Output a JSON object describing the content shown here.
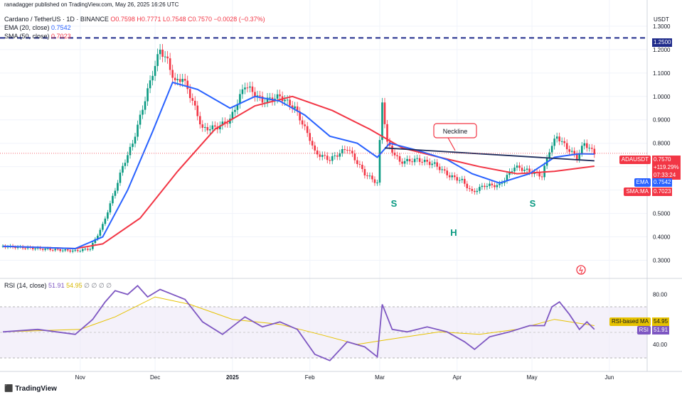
{
  "header": {
    "publisher": "ranadagger published on TradingView.com, May 26, 2025 16:26 UTC",
    "symbol": "Cardano / TetherUS · 1D · BINANCE",
    "ohlc": "O0.7598 H0.7771 L0.7548 C0.7570 −0.0028 (−0.37%)",
    "ema_label": "EMA (20, close)",
    "ema_value": "0.7542",
    "sma_label": "SMA (50, close)",
    "sma_value": "0.7023",
    "rsi_label": "RSI (14, close)",
    "rsi_value": "51.91",
    "rsi_ma_value": "54.95",
    "rsi_nan": "∅ ∅ ∅ ∅"
  },
  "axis": {
    "currency": "USDT",
    "price_ticks": [
      "1.3000",
      "1.2000",
      "1.1000",
      "1.0000",
      "0.9000",
      "0.8000",
      "0.7000",
      "0.6000",
      "0.5000",
      "0.4000",
      "0.3000"
    ],
    "rsi_ticks": [
      "80.00",
      "40.00"
    ],
    "time_ticks": [
      "Nov",
      "Dec",
      "2025",
      "Feb",
      "Mar",
      "Apr",
      "May",
      "Jun"
    ]
  },
  "price_labels": {
    "resistance": "1.2500",
    "symbol_tag": "ADAUSDT",
    "last_price": "0.7570",
    "change": "+119.29%",
    "countdown": "07:33:24",
    "ema_tag": "EMA",
    "ema_val": "0.7542",
    "sma_tag": "SMA:MA",
    "sma_val": "0.7023",
    "rsima_tag": "RSI-based MA",
    "rsima_val": "54.95",
    "rsi_tag": "RSI",
    "rsi_val": "51.91"
  },
  "annotations": {
    "neckline": "Neckline",
    "left_shoulder": "S",
    "head": "H",
    "right_shoulder": "S"
  },
  "branding": "TradingView",
  "colors": {
    "up": "#089981",
    "down": "#f23645",
    "ema": "#2962ff",
    "sma": "#f23645",
    "rsi": "#7e57c2",
    "rsi_ma": "#e6c200",
    "resistance": "#1e2a8a",
    "neckline": "#1f2d5c"
  },
  "chart_data": {
    "type": "candlestick",
    "title": "Cardano / TetherUS · 1D · BINANCE",
    "ylim": [
      0.25,
      1.33
    ],
    "x_range": [
      "2024-10-01",
      "2025-06-15"
    ],
    "resistance_level": 1.25,
    "neckline": {
      "x": [
        "2025-03-03",
        "2025-05-26"
      ],
      "y": [
        0.78,
        0.725
      ]
    },
    "close_series": {
      "x": [
        "2024-10-01",
        "2024-10-15",
        "2024-10-30",
        "2024-11-05",
        "2024-11-10",
        "2024-11-14",
        "2024-11-18",
        "2024-11-22",
        "2024-11-26",
        "2024-11-30",
        "2024-12-03",
        "2024-12-06",
        "2024-12-09",
        "2024-12-12",
        "2024-12-16",
        "2024-12-20",
        "2024-12-26",
        "2024-12-31",
        "2025-01-06",
        "2025-01-13",
        "2025-01-20",
        "2025-01-26",
        "2025-02-01",
        "2025-02-03",
        "2025-02-09",
        "2025-02-16",
        "2025-02-23",
        "2025-02-28",
        "2025-03-02",
        "2025-03-04",
        "2025-03-09",
        "2025-03-16",
        "2025-03-23",
        "2025-03-29",
        "2025-04-03",
        "2025-04-07",
        "2025-04-12",
        "2025-04-18",
        "2025-04-24",
        "2025-04-30",
        "2025-05-05",
        "2025-05-08",
        "2025-05-11",
        "2025-05-15",
        "2025-05-19",
        "2025-05-22",
        "2025-05-26"
      ],
      "y": [
        0.36,
        0.35,
        0.34,
        0.35,
        0.45,
        0.57,
        0.7,
        0.8,
        0.95,
        1.1,
        1.2,
        1.15,
        1.06,
        1.08,
        0.98,
        0.86,
        0.87,
        0.9,
        1.05,
        0.98,
        1.0,
        0.95,
        0.82,
        0.76,
        0.73,
        0.78,
        0.67,
        0.63,
        0.98,
        0.8,
        0.72,
        0.73,
        0.71,
        0.66,
        0.64,
        0.59,
        0.62,
        0.62,
        0.7,
        0.68,
        0.66,
        0.77,
        0.83,
        0.78,
        0.74,
        0.8,
        0.757
      ]
    },
    "series": [
      {
        "name": "EMA (20, close)",
        "last": 0.7542,
        "x": [
          "2024-10-01",
          "2024-10-30",
          "2024-11-10",
          "2024-11-20",
          "2024-11-30",
          "2024-12-08",
          "2024-12-18",
          "2024-12-31",
          "2025-01-10",
          "2025-01-20",
          "2025-01-30",
          "2025-02-09",
          "2025-02-20",
          "2025-02-28",
          "2025-03-05",
          "2025-03-16",
          "2025-03-28",
          "2025-04-07",
          "2025-04-18",
          "2025-04-30",
          "2025-05-10",
          "2025-05-20",
          "2025-05-26"
        ],
        "y": [
          0.36,
          0.35,
          0.4,
          0.6,
          0.85,
          1.06,
          1.03,
          0.95,
          1.0,
          0.98,
          0.92,
          0.83,
          0.8,
          0.74,
          0.8,
          0.77,
          0.73,
          0.67,
          0.63,
          0.67,
          0.74,
          0.755,
          0.754
        ]
      },
      {
        "name": "SMA (50, close)",
        "last": 0.7023,
        "x": [
          "2024-10-01",
          "2024-10-30",
          "2024-11-10",
          "2024-11-25",
          "2024-12-10",
          "2024-12-25",
          "2025-01-10",
          "2025-01-25",
          "2025-02-10",
          "2025-02-25",
          "2025-03-10",
          "2025-03-25",
          "2025-04-10",
          "2025-04-25",
          "2025-05-10",
          "2025-05-26"
        ],
        "y": [
          0.36,
          0.35,
          0.37,
          0.48,
          0.68,
          0.86,
          0.96,
          1.0,
          0.94,
          0.86,
          0.78,
          0.74,
          0.7,
          0.67,
          0.68,
          0.702
        ]
      }
    ],
    "rsi": {
      "name": "RSI (14, close)",
      "ylim": [
        20,
        90
      ],
      "bands": [
        30,
        70
      ],
      "last": 51.91,
      "ma_last": 54.95,
      "x": [
        "2024-10-01",
        "2024-10-15",
        "2024-10-30",
        "2024-11-06",
        "2024-11-11",
        "2024-11-15",
        "2024-11-20",
        "2024-11-24",
        "2024-11-28",
        "2024-12-03",
        "2024-12-08",
        "2024-12-13",
        "2024-12-20",
        "2024-12-28",
        "2025-01-06",
        "2025-01-13",
        "2025-01-20",
        "2025-01-27",
        "2025-02-03",
        "2025-02-09",
        "2025-02-16",
        "2025-02-23",
        "2025-02-28",
        "2025-03-02",
        "2025-03-06",
        "2025-03-12",
        "2025-03-20",
        "2025-03-28",
        "2025-04-04",
        "2025-04-08",
        "2025-04-14",
        "2025-04-22",
        "2025-04-30",
        "2025-05-06",
        "2025-05-09",
        "2025-05-12",
        "2025-05-16",
        "2025-05-20",
        "2025-05-23",
        "2025-05-26"
      ],
      "y": [
        50,
        52,
        48,
        60,
        74,
        83,
        80,
        87,
        78,
        84,
        80,
        76,
        58,
        48,
        62,
        54,
        58,
        52,
        32,
        27,
        42,
        38,
        30,
        72,
        52,
        50,
        54,
        50,
        42,
        36,
        46,
        50,
        55,
        55,
        70,
        74,
        64,
        52,
        58,
        52
      ]
    },
    "rsi_ma": {
      "x": [
        "2024-10-01",
        "2024-11-01",
        "2024-11-15",
        "2024-12-01",
        "2024-12-15",
        "2025-01-01",
        "2025-01-20",
        "2025-02-05",
        "2025-02-20",
        "2025-03-05",
        "2025-03-25",
        "2025-04-10",
        "2025-04-25",
        "2025-05-10",
        "2025-05-26"
      ],
      "y": [
        50,
        52,
        62,
        78,
        72,
        60,
        56,
        48,
        40,
        44,
        50,
        48,
        52,
        60,
        55
      ]
    }
  }
}
